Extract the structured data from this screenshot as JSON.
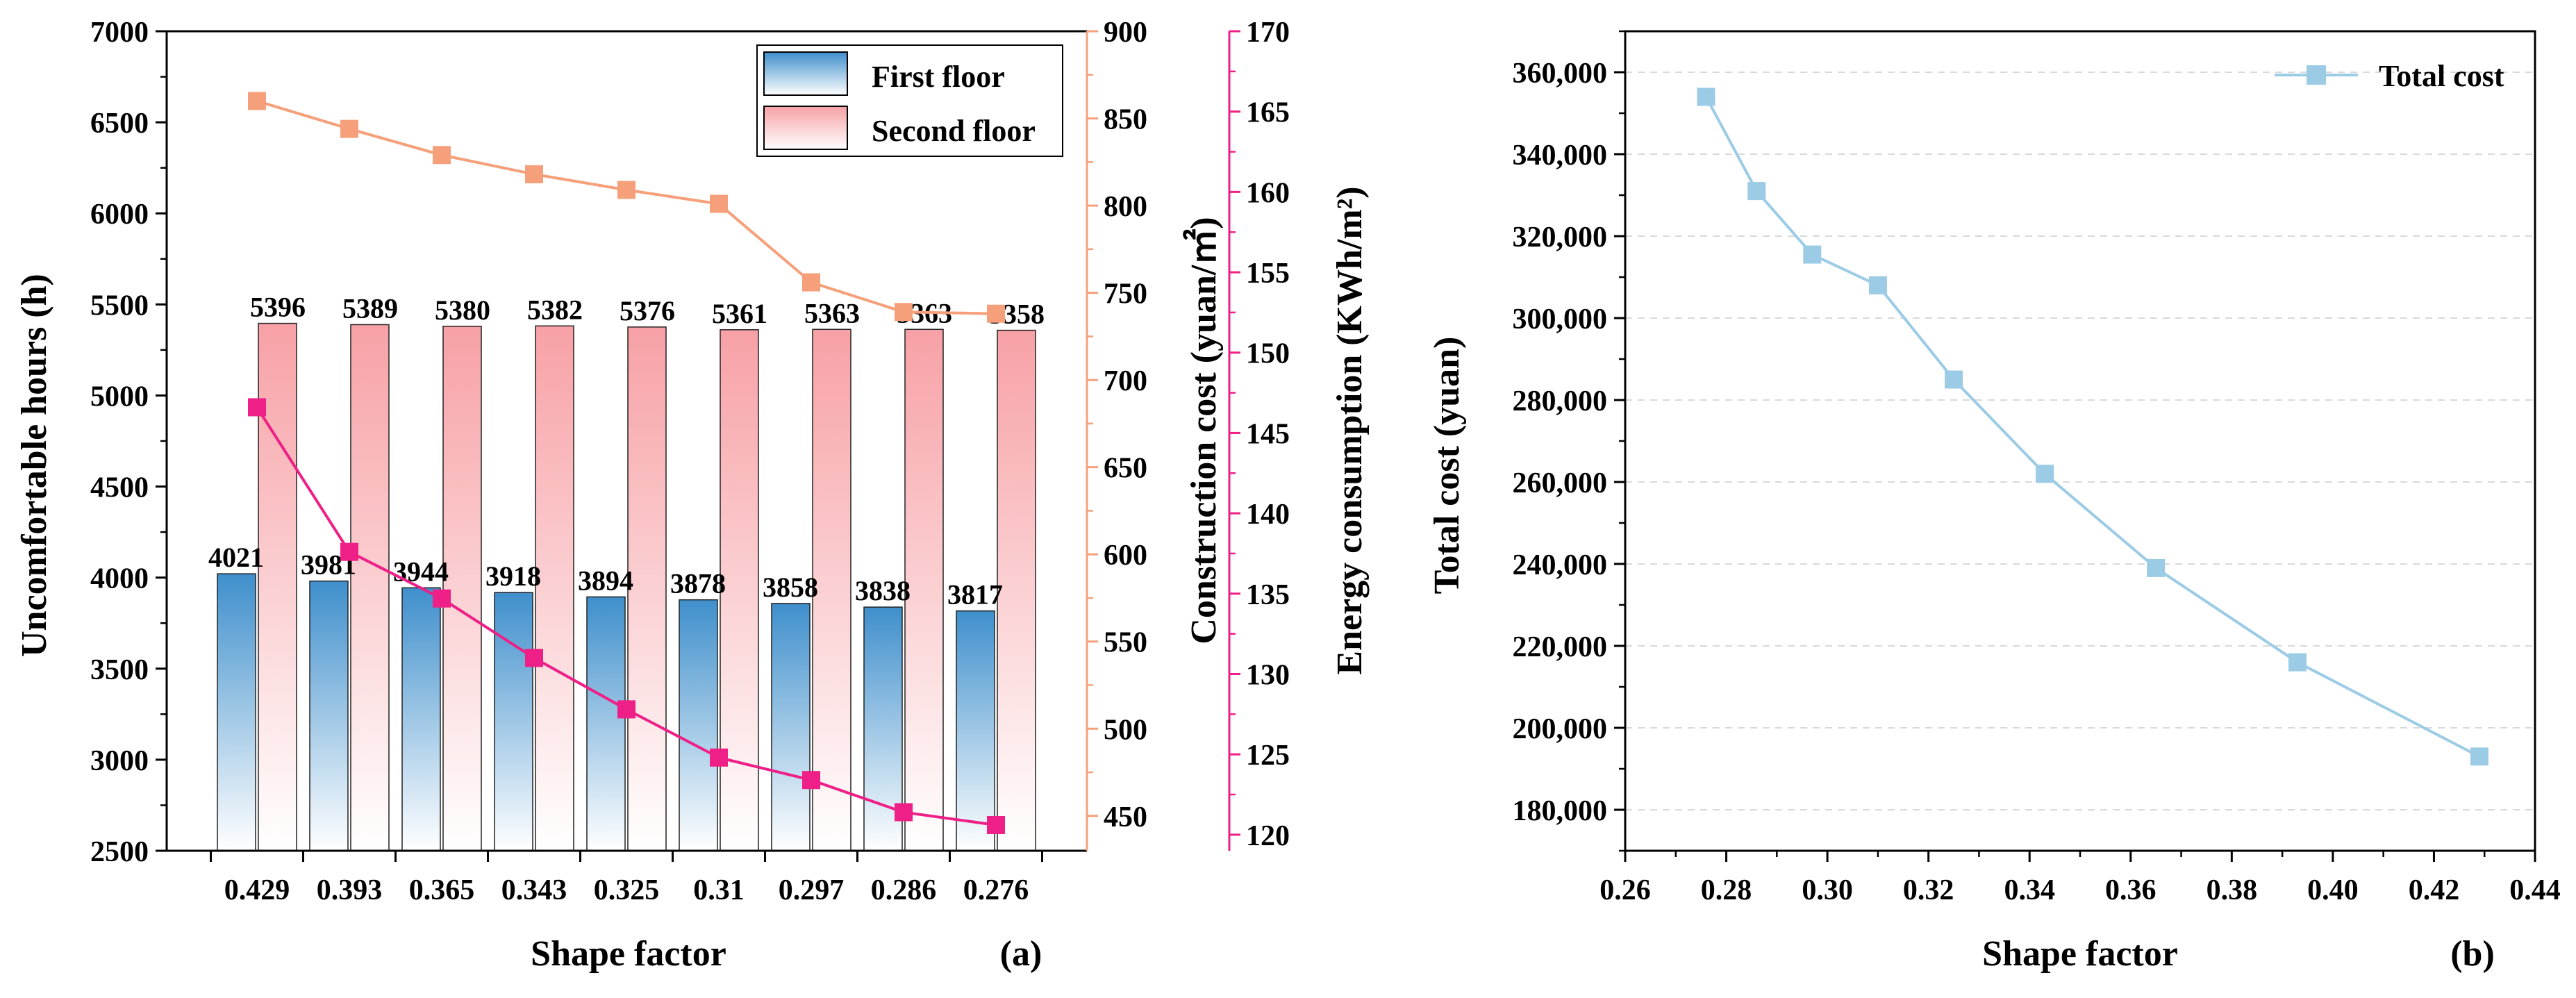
{
  "colors": {
    "first_floor_top": "#3f8fcc",
    "first_floor_bottom": "#ffffff",
    "second_floor_top": "#f7a1a6",
    "second_floor_bottom": "#ffffff",
    "construction_line": "#f5a07b",
    "energy_line": "#ee1f86",
    "total_cost_line": "#9ccbe6",
    "axis": "#000000",
    "grid": "#d9d9d9"
  },
  "chart_data": [
    {
      "type": "bar",
      "panel_label": "(a)",
      "xlabel": "Shape factor",
      "categories": [
        "0.429",
        "0.393",
        "0.365",
        "0.343",
        "0.325",
        "0.31",
        "0.297",
        "0.286",
        "0.276"
      ],
      "y_left": {
        "label": "Uncomfortable hours (h)",
        "lim": [
          2500,
          7000
        ],
        "ticks": [
          2500,
          3000,
          3500,
          4000,
          4500,
          5000,
          5500,
          6000,
          6500,
          7000
        ]
      },
      "y_right_1": {
        "label": "Construction cost (yuan/㎡)",
        "lim": [
          430,
          900
        ],
        "ticks": [
          450,
          500,
          550,
          600,
          650,
          700,
          750,
          800,
          850,
          900
        ]
      },
      "y_right_2": {
        "label": "Energy consumption (KWh/m²)",
        "lim": [
          119,
          170
        ],
        "ticks": [
          120,
          125,
          130,
          135,
          140,
          145,
          150,
          155,
          160,
          165,
          170
        ]
      },
      "series": [
        {
          "name": "First floor",
          "kind": "bar",
          "axis": "y_left",
          "values": [
            4021,
            3981,
            3944,
            3918,
            3894,
            3878,
            3858,
            3838,
            3817
          ],
          "labels": [
            "4021",
            "3981",
            "3944",
            "3918",
            "3894",
            "3878",
            "3858",
            "3838",
            "3817"
          ]
        },
        {
          "name": "Second floor",
          "kind": "bar",
          "axis": "y_left",
          "values": [
            5396,
            5389,
            5380,
            5382,
            5376,
            5361,
            5363,
            5363,
            5358
          ],
          "labels": [
            "5396",
            "5389",
            "5380",
            "5382",
            "5376",
            "5361",
            "5363",
            "5363",
            "5358"
          ]
        },
        {
          "name": "Construction cost",
          "kind": "line",
          "axis": "y_right_1",
          "values": [
            860,
            844,
            829,
            818,
            809,
            801,
            756,
            739,
            738
          ]
        },
        {
          "name": "Energy consumption",
          "kind": "line",
          "axis": "y_right_2",
          "values": [
            146.6,
            137.6,
            134.7,
            131.0,
            127.8,
            124.8,
            123.4,
            121.4,
            120.6
          ]
        }
      ],
      "legend": {
        "position": "top-right",
        "entries": [
          "First floor",
          "Second floor"
        ]
      }
    },
    {
      "type": "line",
      "panel_label": "(b)",
      "xlabel": "Shape factor",
      "ylabel": "Total cost (yuan)",
      "xlim": [
        0.26,
        0.44
      ],
      "ylim": [
        170000,
        370000
      ],
      "x_ticks": [
        0.26,
        0.28,
        0.3,
        0.32,
        0.34,
        0.36,
        0.38,
        0.4,
        0.42,
        0.44
      ],
      "x_tick_labels": [
        "0.26",
        "0.28",
        "0.30",
        "0.32",
        "0.34",
        "0.36",
        "0.38",
        "0.40",
        "0.42",
        "0.44"
      ],
      "y_ticks": [
        180000,
        200000,
        220000,
        240000,
        260000,
        280000,
        300000,
        320000,
        340000,
        360000
      ],
      "y_tick_labels": [
        "180,000",
        "200,000",
        "220,000",
        "240,000",
        "260,000",
        "280,000",
        "300,000",
        "320,000",
        "340,000",
        "360,000"
      ],
      "grid": true,
      "series": [
        {
          "name": "Total cost",
          "x": [
            0.276,
            0.286,
            0.297,
            0.31,
            0.325,
            0.343,
            0.365,
            0.393,
            0.429
          ],
          "y": [
            354000,
            331000,
            315500,
            308000,
            285000,
            262000,
            239000,
            216000,
            193000
          ]
        }
      ],
      "legend": {
        "position": "top-right",
        "entries": [
          "Total cost"
        ]
      }
    }
  ]
}
